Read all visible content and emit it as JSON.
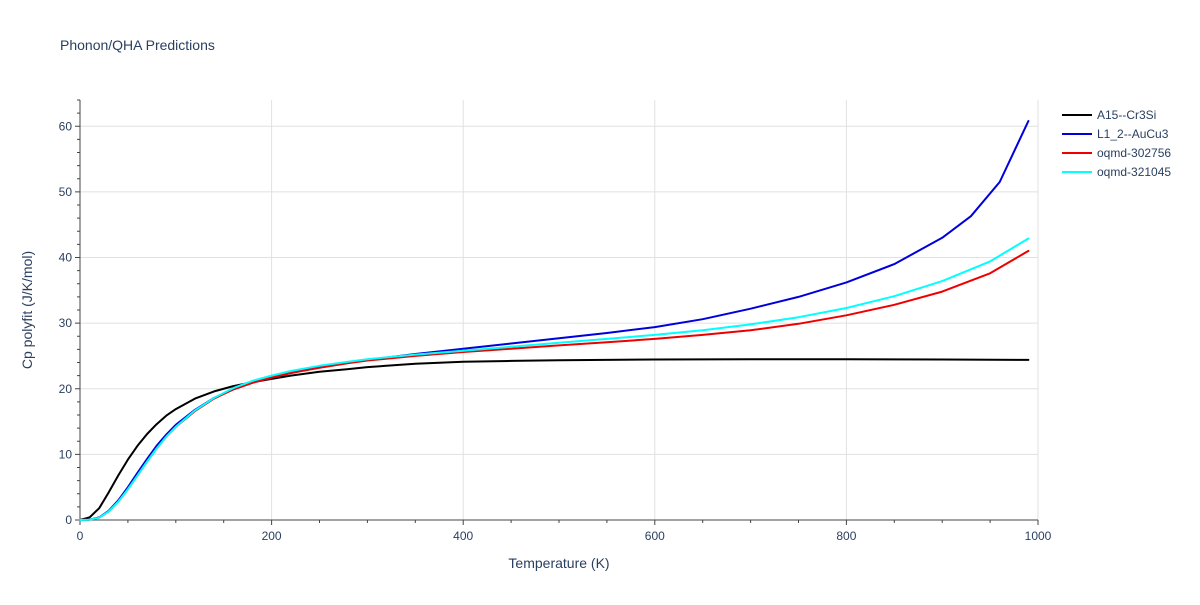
{
  "chart_data": {
    "type": "line",
    "title": "Phonon/QHA Predictions",
    "xlabel": "Temperature (K)",
    "ylabel": "Cp polyfit (J/K/mol)",
    "xlim": [
      0,
      1000
    ],
    "ylim": [
      0,
      64
    ],
    "xticks": [
      0,
      200,
      400,
      600,
      800,
      1000
    ],
    "yticks": [
      0,
      10,
      20,
      30,
      40,
      50,
      60
    ],
    "grid": true,
    "legend_position": "top-right",
    "series": [
      {
        "name": "A15--Cr3Si",
        "color": "#000000",
        "x": [
          0,
          10,
          20,
          30,
          40,
          50,
          60,
          70,
          80,
          90,
          100,
          120,
          140,
          160,
          180,
          200,
          220,
          250,
          280,
          300,
          350,
          400,
          450,
          500,
          600,
          700,
          800,
          900,
          990
        ],
        "y": [
          0,
          0.4,
          1.8,
          4.2,
          6.8,
          9.2,
          11.3,
          13.1,
          14.6,
          15.9,
          16.9,
          18.5,
          19.6,
          20.4,
          21.0,
          21.5,
          22.0,
          22.6,
          23.0,
          23.3,
          23.8,
          24.1,
          24.25,
          24.35,
          24.45,
          24.5,
          24.5,
          24.45,
          24.4
        ]
      },
      {
        "name": "L1_2--AuCu3",
        "color": "#0000dd",
        "x": [
          0,
          10,
          20,
          30,
          40,
          50,
          60,
          70,
          80,
          90,
          100,
          120,
          140,
          160,
          180,
          200,
          220,
          250,
          280,
          300,
          350,
          400,
          450,
          500,
          550,
          600,
          650,
          700,
          750,
          800,
          850,
          900,
          930,
          960,
          990
        ],
        "y": [
          0,
          0.05,
          0.4,
          1.4,
          3.0,
          5.0,
          7.2,
          9.3,
          11.3,
          13.0,
          14.5,
          16.8,
          18.6,
          19.9,
          20.9,
          21.7,
          22.4,
          23.3,
          24.0,
          24.4,
          25.3,
          26.1,
          26.9,
          27.7,
          28.5,
          29.4,
          30.6,
          32.2,
          34.0,
          36.2,
          39.0,
          43.0,
          46.3,
          51.5,
          60.8
        ]
      },
      {
        "name": "oqmd-302756",
        "color": "#ee0000",
        "x": [
          0,
          10,
          20,
          30,
          40,
          50,
          60,
          70,
          80,
          90,
          100,
          120,
          140,
          160,
          180,
          200,
          220,
          250,
          280,
          300,
          350,
          400,
          450,
          500,
          550,
          600,
          650,
          700,
          750,
          800,
          850,
          900,
          950,
          990
        ],
        "y": [
          0,
          0.05,
          0.35,
          1.3,
          2.8,
          4.7,
          6.8,
          8.9,
          10.9,
          12.7,
          14.2,
          16.6,
          18.5,
          19.9,
          20.9,
          21.7,
          22.4,
          23.2,
          23.9,
          24.3,
          25.0,
          25.6,
          26.1,
          26.6,
          27.1,
          27.6,
          28.2,
          28.9,
          29.9,
          31.2,
          32.8,
          34.8,
          37.6,
          41.0
        ]
      },
      {
        "name": "oqmd-321045",
        "color": "#00ffff",
        "x": [
          0,
          10,
          20,
          30,
          40,
          50,
          60,
          70,
          80,
          90,
          100,
          120,
          140,
          160,
          180,
          200,
          220,
          250,
          280,
          300,
          350,
          400,
          450,
          500,
          550,
          600,
          650,
          700,
          750,
          800,
          850,
          900,
          950,
          990
        ],
        "y": [
          0,
          0.05,
          0.35,
          1.3,
          2.8,
          4.7,
          6.8,
          8.9,
          10.9,
          12.7,
          14.2,
          16.7,
          18.6,
          20.1,
          21.2,
          22.0,
          22.7,
          23.5,
          24.1,
          24.5,
          25.2,
          25.8,
          26.4,
          27.0,
          27.6,
          28.2,
          28.9,
          29.8,
          30.9,
          32.3,
          34.1,
          36.4,
          39.4,
          42.9
        ]
      }
    ]
  }
}
